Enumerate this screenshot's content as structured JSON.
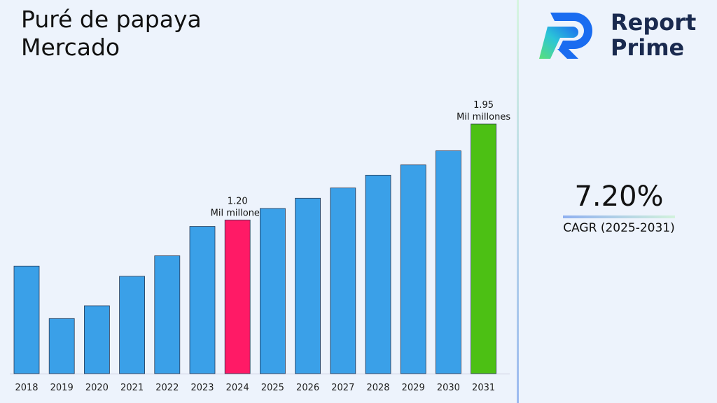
{
  "title_lines": [
    "Puré de papaya",
    "Mercado"
  ],
  "brand": {
    "line1": "Report",
    "line2": "Prime"
  },
  "cagr": {
    "value": "7.20%",
    "label": "CAGR (2025-2031)"
  },
  "chart_data": {
    "type": "bar",
    "title": "Puré de papaya Mercado",
    "categories": [
      "2018",
      "2019",
      "2020",
      "2021",
      "2022",
      "2023",
      "2024",
      "2025",
      "2026",
      "2027",
      "2028",
      "2029",
      "2030",
      "2031"
    ],
    "values": [
      0.84,
      0.43,
      0.53,
      0.76,
      0.92,
      1.15,
      1.2,
      1.29,
      1.37,
      1.45,
      1.55,
      1.63,
      1.74,
      1.95
    ],
    "unit": "Mil millones",
    "data_labels": [
      {
        "category": "2024",
        "value": "1.20",
        "unit": "Mil millones"
      },
      {
        "category": "2031",
        "value": "1.95",
        "unit": "Mil millones"
      }
    ],
    "colors": {
      "default": "#3aa0e8",
      "highlight_2024": "#ff1a66",
      "highlight_2031": "#4cc014"
    },
    "ylim": [
      0,
      2.0
    ],
    "grid": false,
    "legend": "none"
  }
}
